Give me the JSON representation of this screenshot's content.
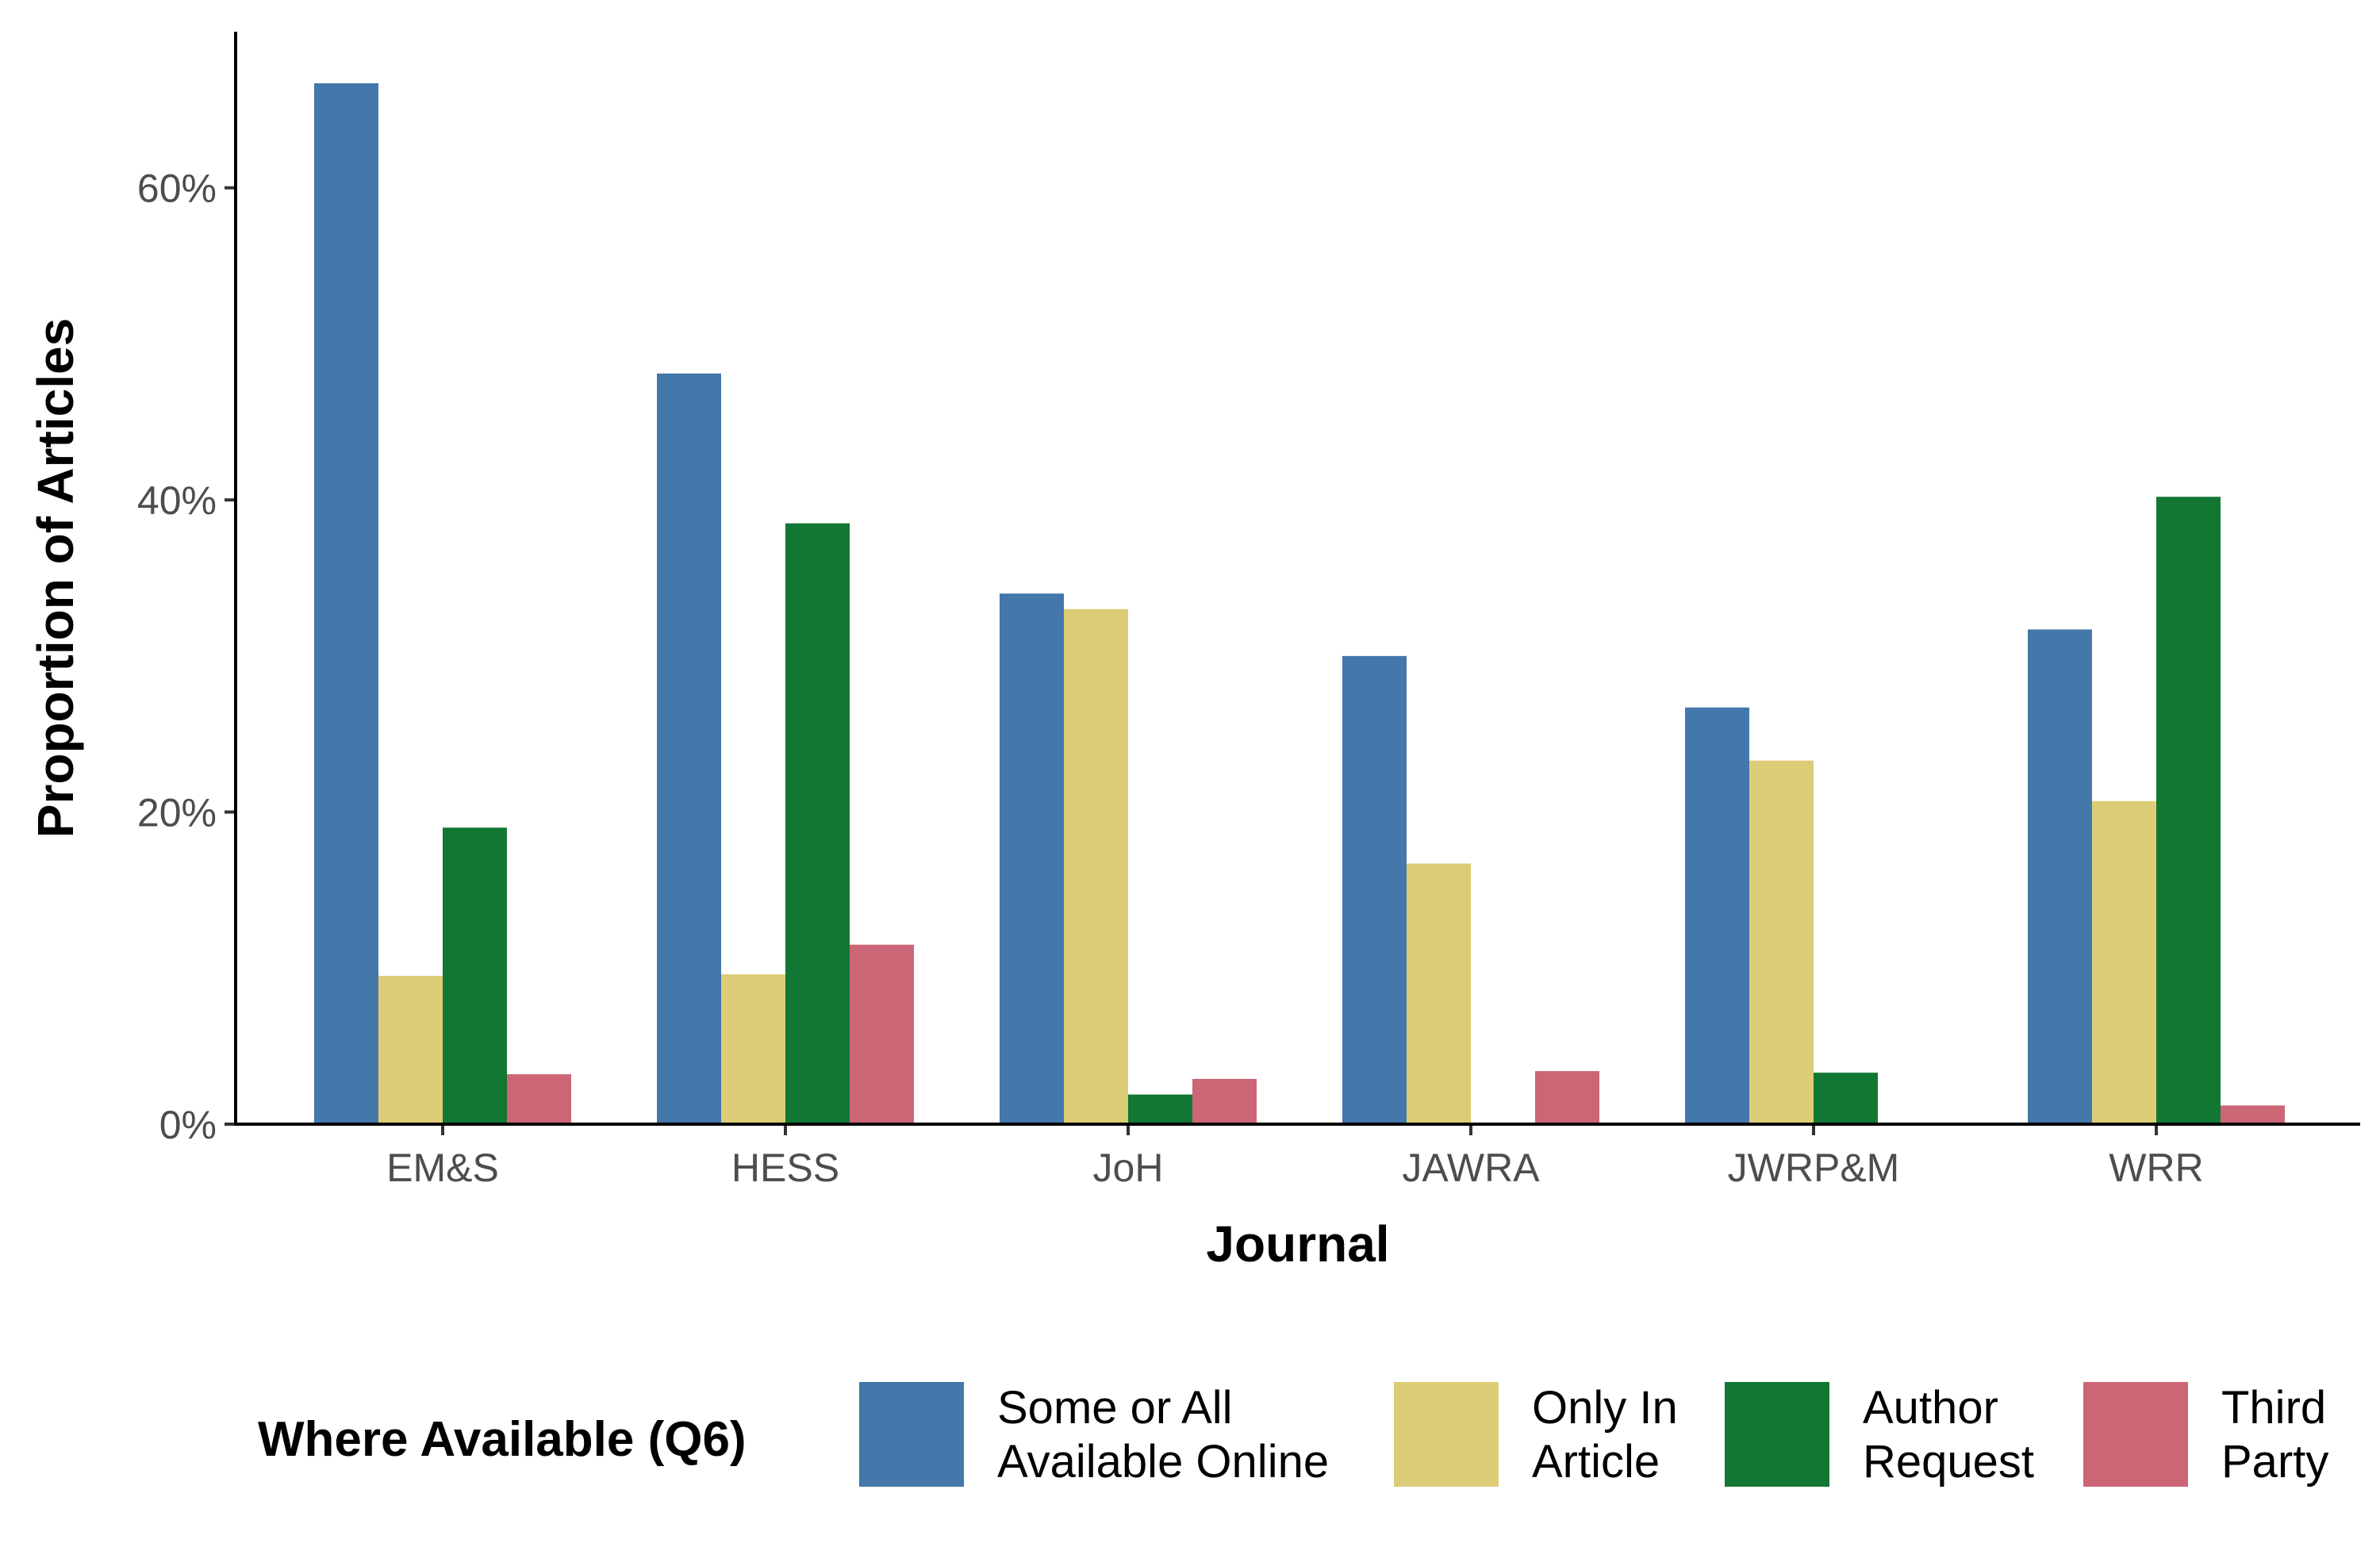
{
  "chart_data": {
    "type": "bar",
    "title": "",
    "xlabel": "Journal",
    "ylabel": "Proportion of Articles",
    "ylim": [
      0,
      0.7
    ],
    "y_ticks": [
      0,
      0.2,
      0.4,
      0.6
    ],
    "y_tick_labels": [
      "0%",
      "20%",
      "40%",
      "60%"
    ],
    "grid": false,
    "legend_position": "bottom",
    "legend_title": "Where Available (Q6)",
    "categories": [
      "EM&S",
      "HESS",
      "JoH",
      "JAWRA",
      "JWRP&M",
      "WRR"
    ],
    "series": [
      {
        "name": "Some or All Available Online",
        "label_lines": [
          "Some or All",
          "Available Online"
        ],
        "color": "#4477AA",
        "values": [
          0.667,
          0.481,
          0.34,
          0.3,
          0.267,
          0.317
        ]
      },
      {
        "name": "Only In Article",
        "label_lines": [
          "Only In",
          "Article"
        ],
        "color": "#DDCC77",
        "values": [
          0.095,
          0.096,
          0.33,
          0.167,
          0.233,
          0.207
        ]
      },
      {
        "name": "Author Request",
        "label_lines": [
          "Author",
          "Request"
        ],
        "color": "#117733",
        "values": [
          0.19,
          0.385,
          0.019,
          0.0,
          0.033,
          0.402
        ]
      },
      {
        "name": "Third Party",
        "label_lines": [
          "Third",
          "Party"
        ],
        "color": "#CC6677",
        "values": [
          0.032,
          0.115,
          0.029,
          0.034,
          0.0,
          0.012
        ]
      }
    ]
  }
}
